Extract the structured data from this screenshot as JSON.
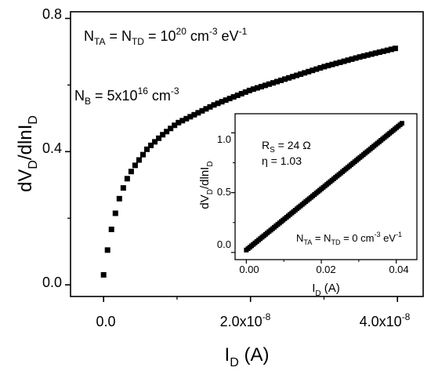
{
  "chart_data": [
    {
      "type": "scatter",
      "xlabel": "I",
      "xlabel_sub": "D",
      "xlabel_unit": " (A)",
      "ylabel": "dV",
      "ylabel_sub1": "D",
      "ylabel_mid": "/dlnI",
      "ylabel_sub2": "D",
      "xlim": [
        -4.5e-09,
        4.35e-08
      ],
      "ylim": [
        -0.035,
        0.82
      ],
      "xticks": [
        0,
        2e-08,
        4e-08
      ],
      "xtick_labels": [
        {
          "mant": "0.0",
          "exp": ""
        },
        {
          "mant": "2.0x10",
          "exp": "-8"
        },
        {
          "mant": "4.0x10",
          "exp": "-8"
        }
      ],
      "yticks": [
        0.0,
        0.4,
        0.8
      ],
      "ytick_labels": [
        "0.0",
        "0.4",
        "0.8"
      ],
      "annotations": {
        "line1": {
          "a": "N",
          "a_sub": "TA",
          "b": " = N",
          "b_sub": "TD",
          "c": " = 10",
          "c_sup": "20",
          "d": " cm",
          "d_sup": "-3",
          "e": " eV",
          "e_sup": "-1"
        },
        "line2": {
          "a": "N",
          "a_sub": "B",
          "b": " = 5x10",
          "b_sup": "16",
          "c": " cm",
          "c_sup": "-3"
        }
      },
      "series": [
        {
          "marker": "square",
          "color": "#000000",
          "x_start": 0.0,
          "x_end": 3.97e-08,
          "n_points": 75,
          "curve_samples": [
            [
              0.0,
              0.03
            ],
            [
              2.5e-10,
              0.06
            ],
            [
              5e-10,
              0.1
            ],
            [
              1e-09,
              0.16
            ],
            [
              2e-09,
              0.25
            ],
            [
              3e-09,
              0.31
            ],
            [
              4e-09,
              0.35
            ],
            [
              6e-09,
              0.41
            ],
            [
              8e-09,
              0.45
            ],
            [
              1e-08,
              0.485
            ],
            [
              1.5e-08,
              0.54
            ],
            [
              2e-08,
              0.585
            ],
            [
              2.5e-08,
              0.62
            ],
            [
              3e-08,
              0.655
            ],
            [
              3.5e-08,
              0.685
            ],
            [
              3.97e-08,
              0.71
            ]
          ]
        }
      ]
    },
    {
      "type": "scatter",
      "xlabel": "I",
      "xlabel_sub": "D",
      "xlabel_unit": " (A)",
      "ylabel": "dV",
      "ylabel_sub1": "D",
      "ylabel_mid": "/dlnI",
      "ylabel_sub2": "D",
      "xlim": [
        -0.003,
        0.0455
      ],
      "ylim": [
        -0.06,
        1.16
      ],
      "xticks": [
        0.0,
        0.02,
        0.04
      ],
      "xtick_labels": [
        "0.00",
        "0.02",
        "0.04"
      ],
      "yticks": [
        0.0,
        0.5,
        1.0
      ],
      "ytick_labels": [
        "0.0",
        "0.5",
        "1.0"
      ],
      "annotations": {
        "rs": {
          "a": "R",
          "a_sub": "S",
          "b": " = 24 Ω"
        },
        "eta": "η = 1.03",
        "nt": {
          "a": "N",
          "a_sub": "TA",
          "b": " = N",
          "b_sub": "TD",
          "c": " = 0 cm",
          "c_sup": "-3",
          "d": " eV",
          "d_sup": "-1"
        }
      },
      "series": [
        {
          "marker": "square",
          "color": "#000000",
          "x_start": 0.0,
          "x_end": 0.0415,
          "n_points": 90,
          "y_at_start": 0.02,
          "y_at_end": 1.08
        }
      ]
    }
  ]
}
